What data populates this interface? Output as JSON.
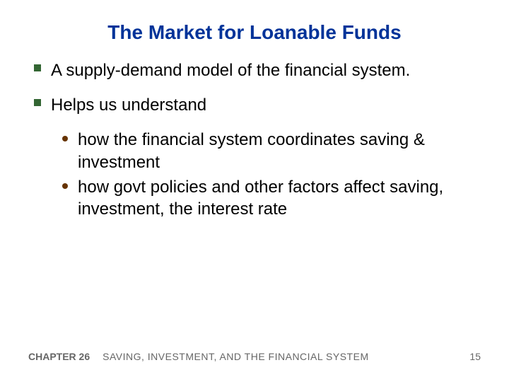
{
  "colors": {
    "title": "#003399",
    "square_bullet": "#336633",
    "dot_bullet": "#663300",
    "body_text": "#000000",
    "footer_text": "#666666",
    "background": "#ffffff"
  },
  "title": "The Market for Loanable Funds",
  "bullets": [
    {
      "text": "A supply-demand model of the financial system.",
      "sub": []
    },
    {
      "text": "Helps us understand",
      "sub": [
        "how the financial system coordinates saving & investment",
        "how govt policies and other factors affect saving, investment, the interest rate"
      ]
    }
  ],
  "footer": {
    "chapter": "CHAPTER 26",
    "title": "SAVING, INVESTMENT, AND THE FINANCIAL SYSTEM",
    "page": "15"
  }
}
